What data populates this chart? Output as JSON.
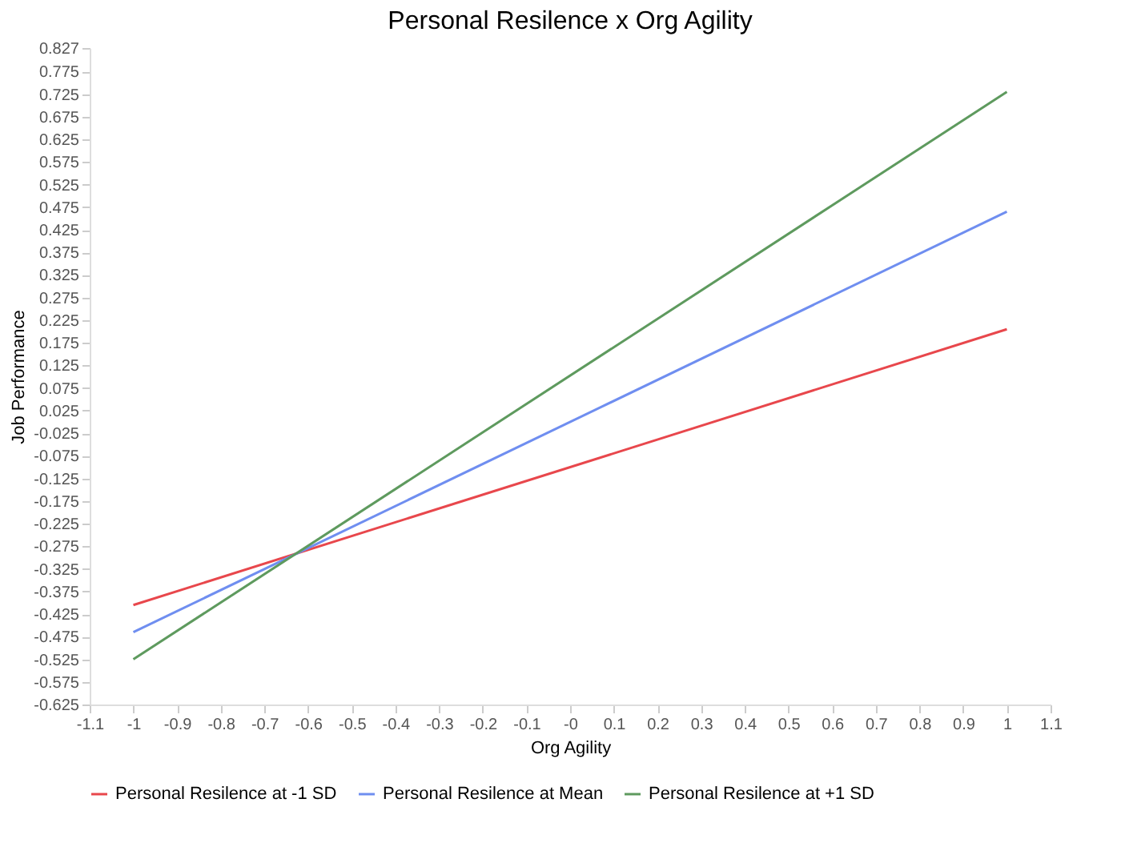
{
  "chart_data": {
    "type": "line",
    "title": "Personal Resilence x Org Agility",
    "xlabel": "Org Agility",
    "ylabel": "Job Performance",
    "x": [
      -1,
      1
    ],
    "series": [
      {
        "name": "Personal Resilence at -1 SD",
        "color": "#e8474c",
        "values": [
          -0.405,
          0.205
        ]
      },
      {
        "name": "Personal Resilence at Mean",
        "color": "#6f8ef0",
        "values": [
          -0.465,
          0.465
        ]
      },
      {
        "name": "Personal Resilence at +1 SD",
        "color": "#5e9a5e",
        "values": [
          -0.525,
          0.73
        ]
      }
    ],
    "xlim": [
      -1.1,
      1.1
    ],
    "xticks": [
      -1.1,
      -1,
      -0.9,
      -0.8,
      -0.7,
      -0.6,
      -0.5,
      -0.4,
      -0.3,
      -0.2,
      -0.1,
      {
        "value": 0,
        "label": "-0"
      },
      0.1,
      0.2,
      0.3,
      0.4,
      0.5,
      0.6,
      0.7,
      0.8,
      0.9,
      1,
      1.1
    ],
    "ylim": [
      -0.625,
      0.827
    ],
    "yticks": [
      0.827,
      0.775,
      0.725,
      0.675,
      0.625,
      0.575,
      0.525,
      0.475,
      0.425,
      0.375,
      0.325,
      0.275,
      0.225,
      0.175,
      0.125,
      0.075,
      0.025,
      -0.025,
      -0.075,
      -0.125,
      -0.175,
      -0.225,
      -0.275,
      -0.325,
      -0.375,
      -0.425,
      -0.475,
      -0.525,
      -0.575,
      -0.625
    ],
    "grid": false,
    "legend": "bottom",
    "marker": "none",
    "line_style": "solid"
  }
}
